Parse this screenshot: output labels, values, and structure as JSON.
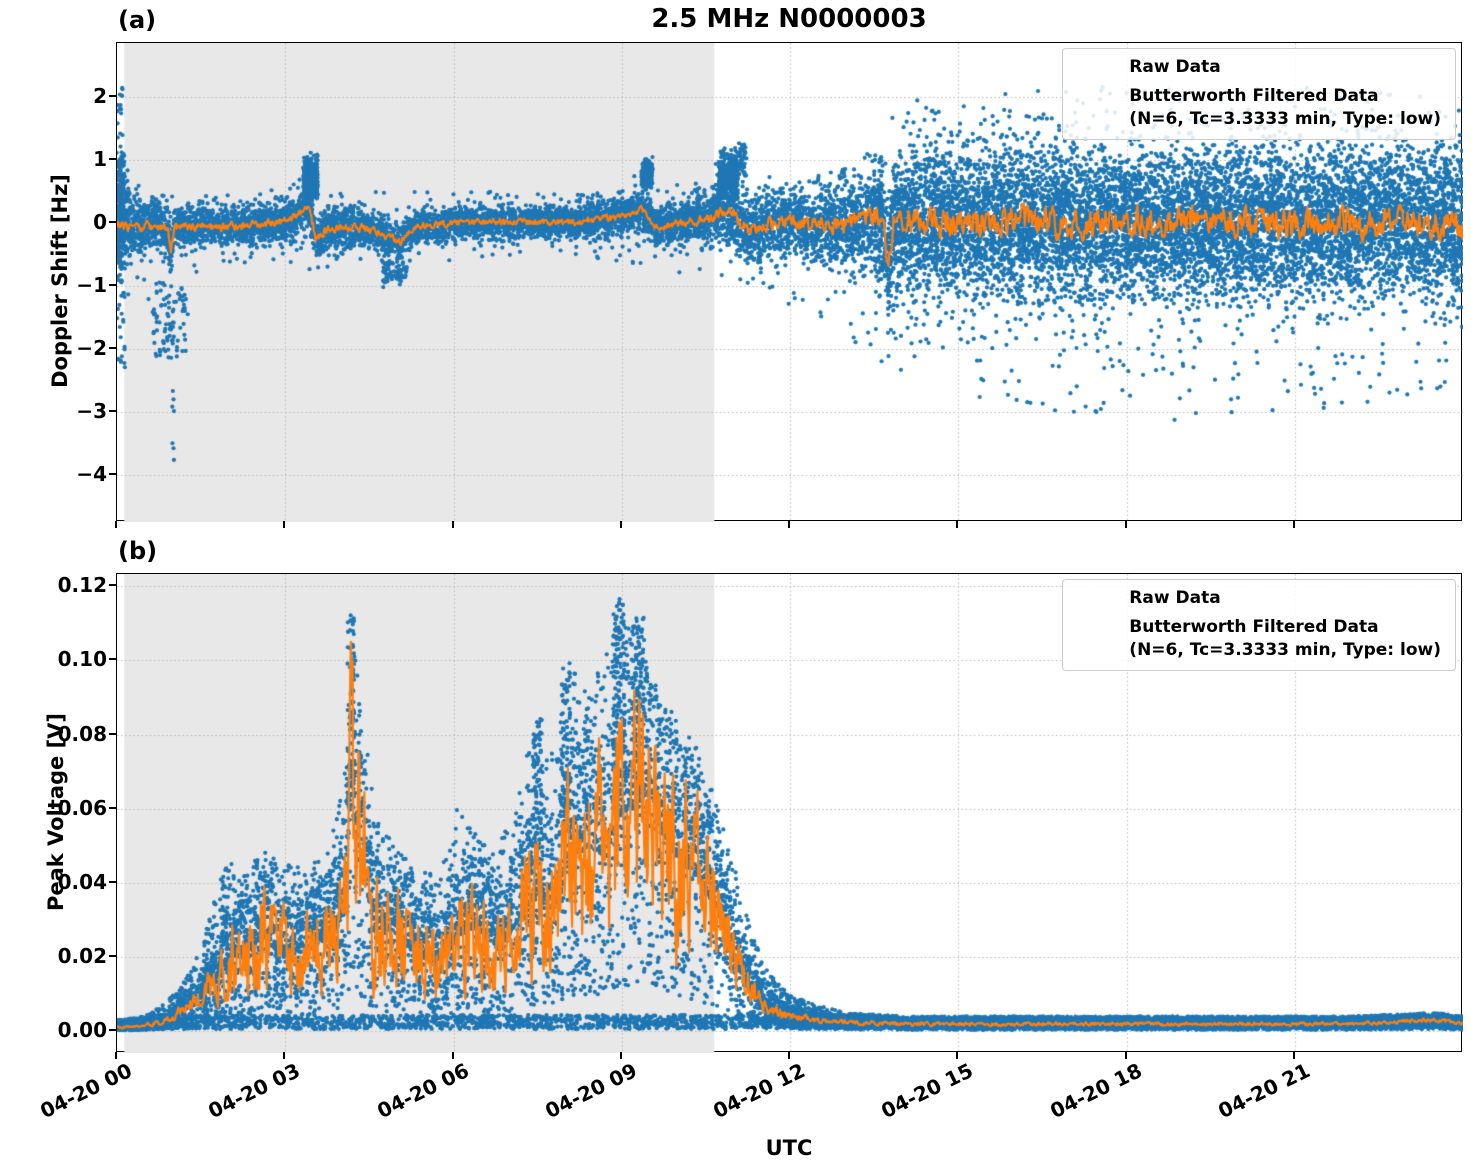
{
  "figure": {
    "title": "2.5 MHz N0000003",
    "panel_a": "(a)",
    "panel_b": "(b)",
    "xlabel": "UTC",
    "ylabel_top": "Doppler Shift [Hz]",
    "ylabel_bottom": "Peak Voltage [V]",
    "legend": {
      "raw": "Raw Data",
      "filt1": "Butterworth Filtered Data",
      "filt2": "(N=6, Tc=3.3333 min, Type: low)"
    },
    "colors": {
      "raw": "#1f77b4",
      "filtered": "#ff7f0e",
      "shade": "#e8e8e8",
      "grid": "#b9b9b9",
      "spine": "#000000"
    }
  },
  "chart_data": [
    {
      "panel": "(a)",
      "type": "scatter",
      "title": "2.5 MHz N0000003",
      "xlabel": "UTC",
      "ylabel": "Doppler Shift [Hz]",
      "xlim_hours": [
        0,
        24
      ],
      "ylim": [
        -4.746,
        2.857
      ],
      "xticks": {
        "hours": [
          0,
          3,
          6,
          9,
          12,
          15,
          18,
          21
        ],
        "labels": [
          "04-20 00",
          "04-20 03",
          "04-20 06",
          "04-20 09",
          "04-20 12",
          "04-20 15",
          "04-20 18",
          "04-20 21"
        ]
      },
      "yticks": {
        "values": [
          2,
          1,
          0,
          -1,
          -2,
          -3,
          -4
        ],
        "labels": [
          "2",
          "1",
          "0",
          "−1",
          "−2",
          "−3",
          "−4"
        ]
      },
      "shaded_region_hours": [
        0.13,
        10.65
      ],
      "grid": true,
      "legend_entries": [
        "Raw Data",
        "Butterworth Filtered Data (N=6, Tc=3.3333 min, Type: low)"
      ],
      "series": [
        {
          "name": "Raw Data",
          "type": "scatter",
          "color": "#1f77b4",
          "envelope": {
            "t": [
              0,
              0.15,
              0.35,
              0.7,
              1.1,
              1.6,
              2.2,
              3.0,
              3.3,
              3.45,
              3.6,
              3.9,
              4.4,
              5.0,
              6.0,
              7.0,
              8.0,
              8.6,
              9.2,
              9.45,
              9.7,
              10.2,
              10.6,
              10.85,
              11.1,
              11.4,
              11.8,
              12.3,
              12.8,
              13.3,
              13.8,
              14.3,
              15,
              16,
              17,
              18,
              19,
              20,
              21,
              22,
              23,
              24
            ],
            "hi": [
              2.15,
              1.4,
              0.8,
              0.55,
              0.5,
              0.45,
              0.5,
              0.6,
              0.95,
              1.35,
              1.05,
              0.6,
              0.55,
              0.5,
              0.5,
              0.5,
              0.45,
              0.6,
              0.75,
              1.15,
              0.65,
              0.6,
              0.85,
              1.35,
              1.2,
              0.85,
              0.65,
              0.7,
              0.85,
              1.1,
              1.7,
              2.0,
              2.1,
              2.2,
              2.15,
              2.2,
              2.1,
              2.2,
              2.15,
              2.2,
              2.1,
              2.0
            ]
          },
          "envelope_lo": {
            "t": [
              0,
              0.15,
              0.4,
              0.7,
              0.95,
              1.0,
              1.05,
              1.2,
              1.5,
              2.0,
              2.6,
              3.2,
              3.6,
              4.1,
              4.7,
              5.1,
              5.6,
              6.5,
              7.5,
              8.5,
              9.2,
              9.8,
              10.4,
              10.9,
              11.3,
              11.8,
              12.3,
              12.8,
              13.3,
              13.8,
              14.3,
              15,
              16,
              17,
              18,
              19,
              20,
              21,
              22,
              23,
              24
            ],
            "lo": [
              -2.3,
              -1.8,
              -1.1,
              -1.6,
              -2.0,
              -4.35,
              -2.1,
              -1.3,
              -0.9,
              -0.65,
              -0.6,
              -0.65,
              -0.8,
              -0.7,
              -0.95,
              -1.05,
              -0.65,
              -0.55,
              -0.5,
              -0.55,
              -0.65,
              -0.75,
              -0.85,
              -0.95,
              -1.05,
              -1.2,
              -1.45,
              -1.7,
              -2.0,
              -2.35,
              -2.5,
              -2.7,
              -3.0,
              -3.15,
              -2.9,
              -3.2,
              -3.0,
              -3.1,
              -2.95,
              -2.85,
              -2.5
            ]
          },
          "core_sigma": {
            "t": [
              0,
              0.2,
              0.5,
              1,
              2,
              3,
              4,
              5,
              6,
              8,
              9.5,
              10.3,
              10.8,
              11.3,
              12,
              12.8,
              13.4,
              14,
              14.6,
              24
            ],
            "v": [
              0.55,
              0.3,
              0.2,
              0.17,
              0.15,
              0.16,
              0.16,
              0.14,
              0.12,
              0.12,
              0.15,
              0.17,
              0.28,
              0.24,
              0.27,
              0.32,
              0.42,
              0.52,
              0.58,
              0.58
            ]
          },
          "clusters": [
            {
              "t": 0.06,
              "dt": 0.07,
              "dist": "g",
              "v": 0.1,
              "dv": 0.85,
              "n": 230
            },
            {
              "t": 0.05,
              "dt": 0.05,
              "dist": "u",
              "vmin": 1.1,
              "vmax": 2.15,
              "n": 16
            },
            {
              "t": 0.08,
              "dt": 0.06,
              "dist": "u",
              "vmin": -2.3,
              "vmax": -1.1,
              "n": 18
            },
            {
              "t": 0.85,
              "dt": 0.22,
              "dist": "u",
              "vmin": -2.2,
              "vmax": -0.9,
              "n": 60
            },
            {
              "t": 1.0,
              "dt": 0.02,
              "dist": "u",
              "vmin": -4.35,
              "vmax": -1.5,
              "n": 9
            },
            {
              "t": 1.18,
              "dt": 0.1,
              "dist": "u",
              "vmin": -2.05,
              "vmax": -1.0,
              "n": 22
            },
            {
              "t": 3.45,
              "dt": 0.13,
              "dist": "g",
              "v": 0.72,
              "dv": 0.3,
              "n": 300
            },
            {
              "t": 4.95,
              "dt": 0.22,
              "dist": "g",
              "v": -0.8,
              "dv": 0.17,
              "n": 70
            },
            {
              "t": 9.45,
              "dt": 0.1,
              "dist": "g",
              "v": 0.78,
              "dv": 0.2,
              "n": 130
            },
            {
              "t": 10.9,
              "dt": 0.17,
              "dist": "g",
              "v": 0.72,
              "dv": 0.32,
              "n": 380
            },
            {
              "t": 11.15,
              "dt": 0.08,
              "dist": "u",
              "vmin": 0.75,
              "vmax": 1.28,
              "n": 45
            }
          ]
        },
        {
          "name": "Butterworth Filtered Data (N=6, Tc=3.3333 min, Type: low)",
          "type": "line",
          "color": "#ff7f0e",
          "control": {
            "t": [
              0,
              0.3,
              0.6,
              0.9,
              0.96,
              1.02,
              1.3,
              1.8,
              2.4,
              3.0,
              3.3,
              3.42,
              3.55,
              3.7,
              4.0,
              4.5,
              5.05,
              5.3,
              6.0,
              7.0,
              8.0,
              8.6,
              9.0,
              9.35,
              9.6,
              10.0,
              10.5,
              10.8,
              11.0,
              11.3,
              11.7,
              12.2,
              12.8,
              13.3,
              13.65,
              13.75,
              13.85,
              14.3,
              15.0,
              16.0,
              17.0,
              18.0,
              19.0,
              20.0,
              21.0,
              22.0,
              23.0,
              24.0
            ],
            "v": [
              0.0,
              -0.07,
              -0.04,
              -0.06,
              -0.5,
              -0.08,
              -0.05,
              -0.06,
              -0.04,
              0.03,
              0.18,
              0.3,
              -0.28,
              -0.12,
              -0.05,
              -0.1,
              -0.3,
              -0.05,
              0.0,
              0.02,
              0.0,
              0.05,
              0.12,
              0.22,
              -0.06,
              0.0,
              0.05,
              0.18,
              0.1,
              -0.12,
              0.0,
              0.02,
              -0.05,
              0.08,
              0.12,
              -0.72,
              0.0,
              0.02,
              0.0,
              0.02,
              -0.02,
              0.02,
              0.0,
              0.02,
              -0.02,
              0.0,
              0.02,
              -0.05
            ]
          },
          "wiggle_abs": {
            "t": [
              0,
              0.5,
              1,
              2,
              4,
              6,
              8,
              10,
              10.6,
              11,
              12,
              13,
              13.6,
              14.2,
              16,
              20,
              24
            ],
            "v": [
              0.07,
              0.06,
              0.05,
              0.05,
              0.05,
              0.04,
              0.04,
              0.05,
              0.06,
              0.08,
              0.08,
              0.1,
              0.13,
              0.18,
              0.18,
              0.18,
              0.18
            ]
          }
        }
      ]
    },
    {
      "panel": "(b)",
      "type": "scatter",
      "xlabel": "UTC",
      "ylabel": "Peak Voltage [V]",
      "xlim_hours": [
        0,
        24
      ],
      "ylim": [
        -0.00585,
        0.1233
      ],
      "xticks": {
        "hours": [
          0,
          3,
          6,
          9,
          12,
          15,
          18,
          21
        ],
        "labels": [
          "04-20 00",
          "04-20 03",
          "04-20 06",
          "04-20 09",
          "04-20 12",
          "04-20 15",
          "04-20 18",
          "04-20 21"
        ]
      },
      "yticks": {
        "values": [
          0.0,
          0.02,
          0.04,
          0.06,
          0.08,
          0.1,
          0.12
        ],
        "labels": [
          "0.00",
          "0.02",
          "0.04",
          "0.06",
          "0.08",
          "0.10",
          "0.12"
        ]
      },
      "shaded_region_hours": [
        0.13,
        10.65
      ],
      "grid": true,
      "legend_entries": [
        "Raw Data",
        "Butterworth Filtered Data (N=6, Tc=3.3333 min, Type: low)"
      ],
      "series": [
        {
          "name": "Raw Data",
          "type": "scatter",
          "color": "#1f77b4",
          "envelope": {
            "t": [
              0,
              0.5,
              0.9,
              1.2,
              1.5,
              1.8,
              2.0,
              2.3,
              2.6,
              3.0,
              3.4,
              3.8,
              4.05,
              4.17,
              4.35,
              4.6,
              5.0,
              5.4,
              5.8,
              6.1,
              6.45,
              6.8,
              7.2,
              7.5,
              7.8,
              8.1,
              8.4,
              8.7,
              8.95,
              9.2,
              9.5,
              9.8,
              10.1,
              10.4,
              10.7,
              11.0,
              11.3,
              11.6,
              12.0,
              12.5,
              13.0,
              14.0,
              16.0,
              18.0,
              20.0,
              22.0,
              23.5,
              24.0
            ],
            "hi": [
              0.003,
              0.004,
              0.008,
              0.014,
              0.022,
              0.04,
              0.046,
              0.042,
              0.05,
              0.045,
              0.044,
              0.05,
              0.07,
              0.114,
              0.088,
              0.06,
              0.05,
              0.042,
              0.046,
              0.062,
              0.052,
              0.05,
              0.068,
              0.086,
              0.075,
              0.1,
              0.09,
              0.102,
              0.117,
              0.112,
              0.096,
              0.09,
              0.082,
              0.075,
              0.062,
              0.045,
              0.028,
              0.016,
              0.01,
              0.007,
              0.005,
              0.004,
              0.004,
              0.004,
              0.004,
              0.004,
              0.005,
              0.004
            ]
          },
          "clusters": [
            {
              "t": 4.17,
              "dt": 0.06,
              "dist": "u",
              "vmin": 0.06,
              "vmax": 0.114,
              "n": 70
            },
            {
              "t": 7.5,
              "dt": 0.08,
              "dist": "u",
              "vmin": 0.05,
              "vmax": 0.086,
              "n": 60
            },
            {
              "t": 8.0,
              "dt": 0.09,
              "dist": "u",
              "vmin": 0.055,
              "vmax": 0.1,
              "n": 80
            },
            {
              "t": 8.95,
              "dt": 0.12,
              "dist": "u",
              "vmin": 0.06,
              "vmax": 0.117,
              "n": 130
            },
            {
              "t": 9.3,
              "dt": 0.1,
              "dist": "u",
              "vmin": 0.055,
              "vmax": 0.112,
              "n": 90
            }
          ]
        },
        {
          "name": "Butterworth Filtered Data (N=6, Tc=3.3333 min, Type: low)",
          "type": "line",
          "color": "#ff7f0e",
          "control": {
            "t": [
              0,
              0.5,
              0.9,
              1.2,
              1.5,
              1.8,
              2.0,
              2.3,
              2.6,
              3.0,
              3.4,
              3.8,
              4.05,
              4.17,
              4.35,
              4.6,
              5.0,
              5.4,
              5.8,
              6.1,
              6.45,
              6.8,
              7.2,
              7.5,
              7.8,
              8.1,
              8.4,
              8.7,
              8.95,
              9.2,
              9.5,
              9.8,
              10.1,
              10.4,
              10.7,
              11.0,
              11.3,
              11.6,
              12.0,
              12.5,
              13.0,
              14.0,
              16.0,
              18.0,
              20.0,
              22.0,
              23.5,
              24.0
            ],
            "v": [
              0.001,
              0.0015,
              0.003,
              0.006,
              0.009,
              0.015,
              0.02,
              0.021,
              0.026,
              0.02,
              0.022,
              0.025,
              0.032,
              0.062,
              0.045,
              0.028,
              0.026,
              0.02,
              0.018,
              0.027,
              0.028,
              0.022,
              0.031,
              0.037,
              0.032,
              0.046,
              0.05,
              0.047,
              0.058,
              0.06,
              0.065,
              0.05,
              0.046,
              0.04,
              0.033,
              0.02,
              0.011,
              0.006,
              0.004,
              0.003,
              0.0025,
              0.002,
              0.002,
              0.002,
              0.002,
              0.002,
              0.003,
              0.002
            ]
          },
          "wiggle_rel": {
            "t": [
              0,
              1.5,
              2,
              4,
              8,
              10.5,
              11.2,
              12,
              24
            ],
            "v": [
              0.2,
              0.25,
              0.42,
              0.42,
              0.42,
              0.38,
              0.3,
              0.2,
              0.15
            ]
          }
        }
      ]
    }
  ]
}
